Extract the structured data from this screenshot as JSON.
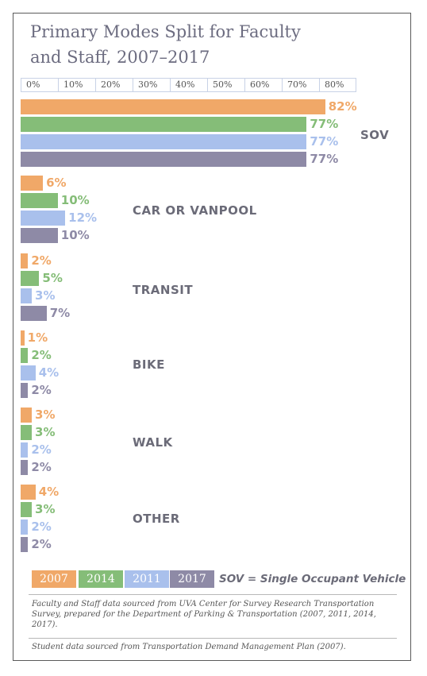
{
  "title": "Primary Modes Split for Faculty and Staff, 2007–2017",
  "colors": {
    "2007": "#f0a868",
    "2014": "#85bd78",
    "2011": "#a9c0ec",
    "2017": "#8e8aa6",
    "category_text": "#6b6b78"
  },
  "chart_data": {
    "type": "bar",
    "orientation": "horizontal",
    "title": "Primary Modes Split for Faculty and Staff, 2007–2017",
    "x_ticks": [
      "0%",
      "10%",
      "20%",
      "30%",
      "40%",
      "50%",
      "60%",
      "70%",
      "80%"
    ],
    "xlim": [
      0,
      90
    ],
    "categories": [
      "SOV",
      "CAR OR VANPOOL",
      "TRANSIT",
      "BIKE",
      "WALK",
      "OTHER"
    ],
    "series": [
      {
        "name": "2007",
        "color": "#f0a868",
        "values": [
          82,
          6,
          2,
          1,
          3,
          4
        ]
      },
      {
        "name": "2014",
        "color": "#85bd78",
        "values": [
          77,
          10,
          5,
          2,
          3,
          3
        ]
      },
      {
        "name": "2011",
        "color": "#a9c0ec",
        "values": [
          77,
          12,
          3,
          4,
          2,
          2
        ]
      },
      {
        "name": "2017",
        "color": "#8e8aa6",
        "values": [
          77,
          10,
          7,
          2,
          2,
          2
        ]
      }
    ],
    "value_labels": [
      [
        "82%",
        "6%",
        "2%",
        "1%",
        "3%",
        "4%"
      ],
      [
        "77%",
        "10%",
        "5%",
        "2%",
        "3%",
        "3%"
      ],
      [
        "77%",
        "12%",
        "3%",
        "4%",
        "2%",
        "2%"
      ],
      [
        "77%",
        "10%",
        "7%",
        "2%",
        "2%",
        "2%"
      ]
    ],
    "legend_position": "bottom-left",
    "grid": false
  },
  "legend": {
    "items": [
      "2007",
      "2014",
      "2011",
      "2017"
    ],
    "note": "SOV = Single Occupant Vehicle"
  },
  "source": {
    "faculty": "Faculty and Staff data sourced from UVA Center for Survey Research Transportation Survey, prepared for the Department of Parking & Transportation (2007, 2011, 2014, 2017).",
    "student": "Student data sourced from Transportation Demand Management Plan (2007)."
  }
}
